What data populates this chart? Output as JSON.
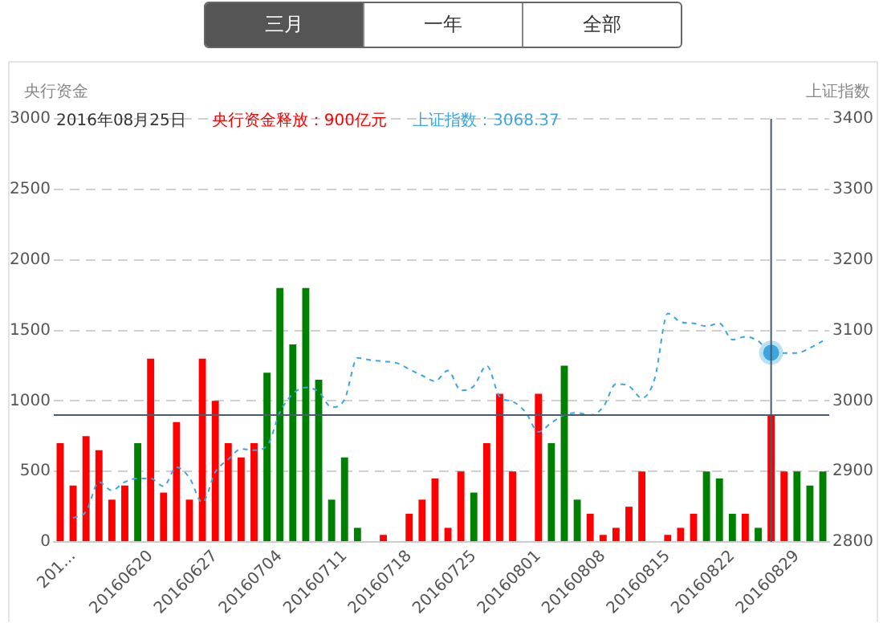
{
  "chart_data": {
    "type": "bar",
    "ylabel": "央行资金",
    "y2label": "上证指数",
    "categories": [
      null,
      "201...",
      null,
      null,
      null,
      null,
      null,
      "20160620",
      null,
      null,
      null,
      null,
      "20160627",
      null,
      null,
      null,
      null,
      "20160704",
      null,
      null,
      null,
      null,
      "20160711",
      null,
      null,
      null,
      null,
      "20160718",
      null,
      null,
      null,
      null,
      "20160725",
      null,
      null,
      null,
      null,
      "20160801",
      null,
      null,
      null,
      null,
      "20160808",
      null,
      null,
      null,
      null,
      "20160815",
      null,
      null,
      null,
      null,
      "20160822",
      null,
      null,
      null,
      null,
      "20160829",
      null,
      null
    ],
    "series": [
      {
        "colors": [
          "#ff0000",
          "#ff0000",
          "#ff0000",
          "#ff0000",
          "#ff0000",
          "#ff0000",
          "#008000",
          "#ff0000",
          "#ff0000",
          "#ff0000",
          "#ff0000",
          "#ff0000",
          "#ff0000",
          "#ff0000",
          "#ff0000",
          "#ff0000",
          "#008000",
          "#008000",
          "#008000",
          "#008000",
          "#008000",
          "#008000",
          "#008000",
          "#008000",
          "#ff0000",
          "#ff0000",
          "#ff0000",
          "#ff0000",
          "#ff0000",
          "#ff0000",
          "#ff0000",
          "#ff0000",
          "#008000",
          "#ff0000",
          "#ff0000",
          "#ff0000",
          "#ff0000",
          "#ff0000",
          "#008000",
          "#008000",
          "#008000",
          "#ff0000",
          "#ff0000",
          "#ff0000",
          "#ff0000",
          "#ff0000",
          "#ff0000",
          "#ff0000",
          "#ff0000",
          "#ff0000",
          "#008000",
          "#008000",
          "#008000",
          "#ff0000",
          "#008000",
          "#ff0000",
          "#ff0000",
          "#008000",
          "#008000",
          "#008000"
        ],
        "values": [
          700,
          400,
          750,
          650,
          300,
          400,
          700,
          1300,
          350,
          850,
          300,
          1300,
          1000,
          700,
          600,
          700,
          1200,
          1800,
          1400,
          1800,
          1150,
          300,
          600,
          100,
          0,
          50,
          0,
          200,
          300,
          450,
          100,
          500,
          350,
          700,
          1050,
          500,
          0,
          1050,
          700,
          1250,
          300,
          200,
          50,
          100,
          250,
          500,
          0,
          50,
          100,
          200,
          500,
          450,
          200,
          200,
          100,
          900,
          500,
          500,
          400,
          500
        ]
      },
      {
        "type": "line",
        "axis": "y2",
        "color": "#3ba6e0",
        "line_style": "dashed",
        "marker": "none",
        "values": [
          null,
          2834,
          2843,
          2885,
          2873,
          2885,
          2890,
          2890,
          2879,
          2906,
          2891,
          2856,
          2899,
          2917,
          2932,
          2930,
          2936,
          2984,
          3010,
          3019,
          3013,
          2991,
          3002,
          3061,
          3058,
          3056,
          3054,
          3045,
          3036,
          3028,
          3043,
          3015,
          3021,
          3050,
          3006,
          2999,
          2984,
          2956,
          2969,
          2980,
          2983,
          2980,
          2991,
          3024,
          3021,
          3004,
          3032,
          3124,
          3112,
          3110,
          3106,
          3110,
          3087,
          3091,
          3085,
          3068.37,
          3068,
          3068,
          3075,
          3085
        ]
      }
    ],
    "ylim": [
      0,
      3000
    ],
    "yticks": [
      0,
      500,
      1000,
      1500,
      2000,
      2500,
      3000
    ],
    "y2lim": [
      2800,
      3400
    ],
    "y2ticks": [
      2800,
      2900,
      3000,
      3100,
      3200,
      3300,
      3400
    ],
    "grid": "y",
    "legend": false,
    "ref_lines": [
      {
        "axis": "y",
        "value": 900,
        "color": "#4a5b70"
      }
    ],
    "annotations": [
      "三月",
      "一年",
      "全部",
      "2016年08月25日",
      "央行资金释放：900亿元",
      "上证指数：3068.37"
    ]
  }
}
